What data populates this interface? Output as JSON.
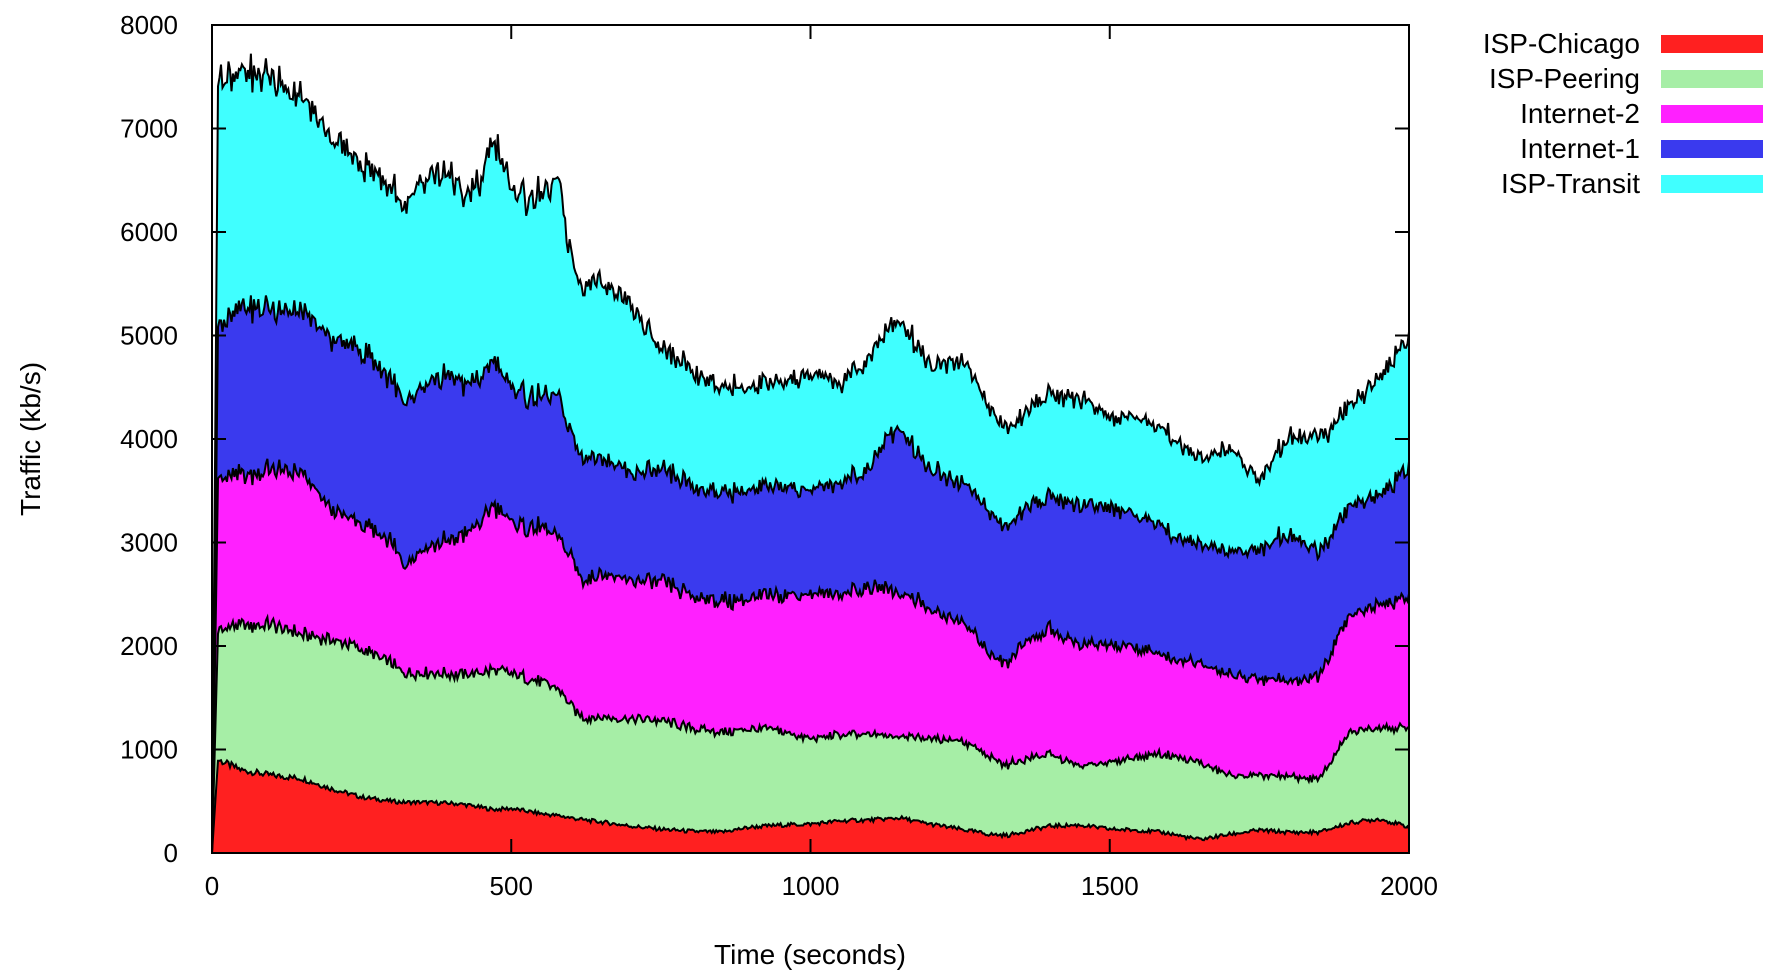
{
  "chart_data": {
    "type": "area",
    "stacked": true,
    "xlabel": "Time (seconds)",
    "ylabel": "Traffic (kb/s)",
    "xlim": [
      0,
      2000
    ],
    "ylim": [
      0,
      8000
    ],
    "x_ticks": [
      "0",
      "500",
      "1000",
      "1500",
      "2000"
    ],
    "y_ticks": [
      "0",
      "1000",
      "2000",
      "3000",
      "4000",
      "5000",
      "6000",
      "7000",
      "8000"
    ],
    "grid": false,
    "legend_position": "top-right outside",
    "x": [
      0,
      10,
      50,
      100,
      150,
      200,
      250,
      300,
      320,
      350,
      400,
      420,
      450,
      470,
      500,
      550,
      580,
      600,
      620,
      650,
      700,
      750,
      800,
      850,
      900,
      950,
      1000,
      1050,
      1100,
      1130,
      1150,
      1180,
      1200,
      1250,
      1300,
      1330,
      1350,
      1400,
      1450,
      1500,
      1550,
      1600,
      1630,
      1650,
      1700,
      1750,
      1800,
      1850,
      1900,
      1950,
      2000
    ],
    "series": [
      {
        "name": "ISP-Chicago",
        "color": "#ff2020",
        "values": [
          0,
          900,
          800,
          750,
          720,
          620,
          540,
          500,
          490,
          490,
          480,
          470,
          440,
          420,
          430,
          380,
          360,
          340,
          320,
          300,
          260,
          230,
          210,
          200,
          250,
          270,
          280,
          310,
          320,
          330,
          340,
          300,
          280,
          230,
          180,
          170,
          200,
          260,
          270,
          230,
          220,
          190,
          150,
          130,
          180,
          220,
          200,
          200,
          290,
          330,
          250
        ]
      },
      {
        "name": "ISP-Peering",
        "color": "#a6eea6",
        "values": [
          0,
          1250,
          1400,
          1450,
          1400,
          1450,
          1430,
          1330,
          1250,
          1250,
          1250,
          1250,
          1300,
          1350,
          1300,
          1270,
          1220,
          1080,
          980,
          1010,
          1040,
          1050,
          990,
          960,
          950,
          910,
          820,
          830,
          820,
          800,
          800,
          810,
          820,
          860,
          740,
          680,
          700,
          690,
          570,
          640,
          720,
          760,
          740,
          740,
          570,
          520,
          540,
          510,
          870,
          900,
          950
        ]
      },
      {
        "name": "Internet-2",
        "color": "#ff20ff",
        "values": [
          0,
          1450,
          1450,
          1500,
          1550,
          1250,
          1200,
          1170,
          1050,
          1200,
          1300,
          1350,
          1450,
          1600,
          1450,
          1480,
          1460,
          1430,
          1330,
          1400,
          1330,
          1340,
          1280,
          1270,
          1250,
          1320,
          1400,
          1360,
          1410,
          1430,
          1380,
          1330,
          1230,
          1160,
          1000,
          990,
          1110,
          1210,
          1170,
          1140,
          1040,
          930,
          950,
          950,
          980,
          940,
          920,
          990,
          1130,
          1200,
          1250
        ]
      },
      {
        "name": "Internet-1",
        "color": "#3a3aee",
        "values": [
          0,
          1450,
          1650,
          1550,
          1550,
          1650,
          1680,
          1570,
          1550,
          1550,
          1600,
          1450,
          1400,
          1400,
          1300,
          1260,
          1350,
          1200,
          1200,
          1140,
          1040,
          1080,
          1050,
          1050,
          1050,
          1050,
          1000,
          1070,
          1150,
          1500,
          1580,
          1420,
          1370,
          1350,
          1370,
          1310,
          1280,
          1300,
          1350,
          1330,
          1280,
          1220,
          1160,
          1150,
          1200,
          1250,
          1430,
          1200,
          1050,
          1050,
          1250
        ]
      },
      {
        "name": "ISP-Transit",
        "color": "#40ffff",
        "values": [
          0,
          2400,
          2250,
          2250,
          2050,
          1950,
          1800,
          1850,
          1900,
          2000,
          1950,
          1780,
          1900,
          2150,
          1900,
          1950,
          2060,
          1700,
          1650,
          1710,
          1630,
          1150,
          1120,
          1030,
          1000,
          1000,
          1120,
          950,
          1080,
          1030,
          1050,
          1040,
          1000,
          1200,
          1010,
          950,
          910,
          990,
          1040,
          860,
          960,
          930,
          880,
          830,
          1000,
          670,
          950,
          1110,
          960,
          1140,
          1260
        ]
      }
    ]
  }
}
